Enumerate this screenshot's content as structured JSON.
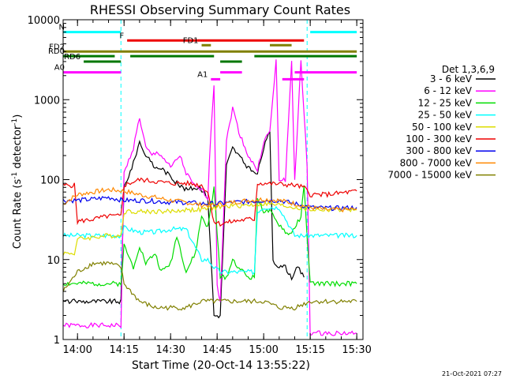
{
  "chart_data": {
    "type": "line",
    "title": "RHESSI Observing Summary Count Rates",
    "xlabel": "Start Time (20-Oct-14 13:55:22)",
    "ylabel": "Count Rate (s⁻¹ detector⁻¹)",
    "ylabel_main": "Count Rate (s",
    "ylabel_sup1": "-1",
    "ylabel_mid": " detector",
    "ylabel_sup2": "-1",
    "ylabel_end": ")",
    "y_scale": "log",
    "ylim": [
      1,
      10000
    ],
    "xlim": [
      "13:55:22",
      "15:32:00"
    ],
    "x_ticks": [
      "14:00",
      "14:15",
      "14:30",
      "14:45",
      "15:00",
      "15:15",
      "15:30"
    ],
    "y_ticks": [
      "1",
      "10",
      "100",
      "1000",
      "10000"
    ],
    "legend_title": "Det 1,3,6,9",
    "legend_position": "right",
    "footer_date": "21-Oct-2021 07:27",
    "series": [
      {
        "name": "3 - 6 keV",
        "color": "#000000",
        "points": [
          [
            "13:55:22",
            3
          ],
          [
            "14:14",
            3
          ],
          [
            "14:15",
            80
          ],
          [
            "14:18",
            160
          ],
          [
            "14:20",
            300
          ],
          [
            "14:22",
            200
          ],
          [
            "14:25",
            140
          ],
          [
            "14:27",
            140
          ],
          [
            "14:30",
            110
          ],
          [
            "14:32",
            90
          ],
          [
            "14:35",
            75
          ],
          [
            "14:38",
            80
          ],
          [
            "14:40",
            75
          ],
          [
            "14:42",
            60
          ],
          [
            "14:44",
            2
          ],
          [
            "14:46",
            2
          ],
          [
            "14:48",
            150
          ],
          [
            "14:50",
            250
          ],
          [
            "14:52",
            200
          ],
          [
            "14:55",
            140
          ],
          [
            "14:57",
            120
          ],
          [
            "14:58",
            120
          ],
          [
            "15:00",
            250
          ],
          [
            "15:02",
            400
          ],
          [
            "15:03",
            10
          ],
          [
            "15:05",
            8
          ],
          [
            "15:07",
            8
          ],
          [
            "15:09",
            6
          ],
          [
            "15:11",
            8
          ],
          [
            "15:13",
            6
          ]
        ]
      },
      {
        "name": "6 - 12 keV",
        "color": "#ff00ff",
        "points": [
          [
            "13:55:22",
            1.5
          ],
          [
            "14:14",
            1.5
          ],
          [
            "14:15",
            120
          ],
          [
            "14:18",
            250
          ],
          [
            "14:20",
            600
          ],
          [
            "14:22",
            250
          ],
          [
            "14:24",
            200
          ],
          [
            "14:26",
            220
          ],
          [
            "14:28",
            180
          ],
          [
            "14:30",
            140
          ],
          [
            "14:33",
            200
          ],
          [
            "14:35",
            120
          ],
          [
            "14:38",
            80
          ],
          [
            "14:40",
            75
          ],
          [
            "14:42",
            60
          ],
          [
            "14:43",
            400
          ],
          [
            "14:44",
            1600
          ],
          [
            "14:45",
            5
          ],
          [
            "14:46",
            3
          ],
          [
            "14:48",
            300
          ],
          [
            "14:50",
            800
          ],
          [
            "14:52",
            400
          ],
          [
            "14:55",
            200
          ],
          [
            "14:57",
            150
          ],
          [
            "14:58",
            130
          ],
          [
            "15:00",
            300
          ],
          [
            "15:02",
            400
          ],
          [
            "15:04",
            3000
          ],
          [
            "15:05",
            100
          ],
          [
            "15:07",
            100
          ],
          [
            "15:09",
            3000
          ],
          [
            "15:10",
            100
          ],
          [
            "15:12",
            3000
          ],
          [
            "15:14",
            150
          ],
          [
            "15:15",
            1.2
          ],
          [
            "15:30",
            1.2
          ]
        ]
      },
      {
        "name": "12 - 25 keV",
        "color": "#00dd00",
        "points": [
          [
            "13:55:22",
            5
          ],
          [
            "14:14",
            5
          ],
          [
            "14:15",
            15
          ],
          [
            "14:18",
            8
          ],
          [
            "14:20",
            15
          ],
          [
            "14:22",
            9
          ],
          [
            "14:25",
            12
          ],
          [
            "14:27",
            7
          ],
          [
            "14:30",
            9
          ],
          [
            "14:32",
            20
          ],
          [
            "14:35",
            7
          ],
          [
            "14:38",
            12
          ],
          [
            "14:40",
            35
          ],
          [
            "14:42",
            25
          ],
          [
            "14:44",
            80
          ],
          [
            "14:46",
            6
          ],
          [
            "14:48",
            6
          ],
          [
            "14:50",
            10
          ],
          [
            "14:52",
            8
          ],
          [
            "14:55",
            6
          ],
          [
            "14:57",
            6
          ],
          [
            "14:58",
            60
          ],
          [
            "15:00",
            40
          ],
          [
            "15:02",
            40
          ],
          [
            "15:04",
            30
          ],
          [
            "15:06",
            25
          ],
          [
            "15:08",
            20
          ],
          [
            "15:10",
            25
          ],
          [
            "15:12",
            35
          ],
          [
            "15:13",
            80
          ],
          [
            "15:15",
            5
          ],
          [
            "15:30",
            5
          ]
        ]
      },
      {
        "name": "25 - 50 keV",
        "color": "#00ffff",
        "points": [
          [
            "13:55:22",
            20
          ],
          [
            "14:14",
            20
          ],
          [
            "14:15",
            25
          ],
          [
            "14:20",
            22
          ],
          [
            "14:25",
            22
          ],
          [
            "14:30",
            24
          ],
          [
            "14:35",
            24
          ],
          [
            "14:40",
            10
          ],
          [
            "14:42",
            10
          ],
          [
            "14:44",
            8
          ],
          [
            "14:46",
            7
          ],
          [
            "14:48",
            7
          ],
          [
            "14:50",
            7
          ],
          [
            "14:55",
            7
          ],
          [
            "14:57",
            7
          ],
          [
            "14:58",
            40
          ],
          [
            "15:00",
            45
          ],
          [
            "15:05",
            45
          ],
          [
            "15:10",
            20
          ],
          [
            "15:13",
            20
          ],
          [
            "15:15",
            20
          ],
          [
            "15:30",
            20
          ]
        ]
      },
      {
        "name": "50 - 100 keV",
        "color": "#dddd00",
        "points": [
          [
            "13:55:22",
            12
          ],
          [
            "13:59",
            12
          ],
          [
            "14:00",
            18
          ],
          [
            "14:05",
            19
          ],
          [
            "14:10",
            20
          ],
          [
            "14:14",
            20
          ],
          [
            "14:15",
            40
          ],
          [
            "14:30",
            40
          ],
          [
            "14:35",
            42
          ],
          [
            "14:40",
            42
          ],
          [
            "14:44",
            45
          ],
          [
            "14:50",
            47
          ],
          [
            "14:55",
            48
          ],
          [
            "15:00",
            50
          ],
          [
            "15:05",
            48
          ],
          [
            "15:10",
            45
          ],
          [
            "15:15",
            42
          ],
          [
            "15:30",
            42
          ]
        ]
      },
      {
        "name": "100 - 300 keV",
        "color": "#ee0000",
        "points": [
          [
            "13:55:22",
            85
          ],
          [
            "13:59",
            85
          ],
          [
            "14:00",
            30
          ],
          [
            "14:05",
            32
          ],
          [
            "14:10",
            35
          ],
          [
            "14:14",
            35
          ],
          [
            "14:15",
            85
          ],
          [
            "14:20",
            100
          ],
          [
            "14:25",
            95
          ],
          [
            "14:30",
            90
          ],
          [
            "14:35",
            90
          ],
          [
            "14:40",
            85
          ],
          [
            "14:42",
            70
          ],
          [
            "14:44",
            30
          ],
          [
            "14:46",
            28
          ],
          [
            "14:50",
            30
          ],
          [
            "14:55",
            32
          ],
          [
            "14:57",
            32
          ],
          [
            "14:58",
            90
          ],
          [
            "15:00",
            90
          ],
          [
            "15:05",
            88
          ],
          [
            "15:10",
            85
          ],
          [
            "15:13",
            80
          ],
          [
            "15:15",
            65
          ],
          [
            "15:20",
            65
          ],
          [
            "15:25",
            68
          ],
          [
            "15:30",
            72
          ]
        ]
      },
      {
        "name": "300 - 800 keV",
        "color": "#0000ee",
        "points": [
          [
            "13:55:22",
            55
          ],
          [
            "14:00",
            55
          ],
          [
            "14:05",
            57
          ],
          [
            "14:10",
            60
          ],
          [
            "14:15",
            55
          ],
          [
            "14:20",
            55
          ],
          [
            "14:25",
            54
          ],
          [
            "14:30",
            52
          ],
          [
            "14:35",
            52
          ],
          [
            "14:40",
            50
          ],
          [
            "14:45",
            50
          ],
          [
            "14:50",
            52
          ],
          [
            "14:55",
            53
          ],
          [
            "15:00",
            55
          ],
          [
            "15:05",
            55
          ],
          [
            "15:10",
            50
          ],
          [
            "15:15",
            45
          ],
          [
            "15:20",
            44
          ],
          [
            "15:25",
            44
          ],
          [
            "15:30",
            45
          ]
        ]
      },
      {
        "name": "800 - 7000 keV",
        "color": "#ff8800",
        "points": [
          [
            "13:55:22",
            50
          ],
          [
            "14:00",
            65
          ],
          [
            "14:05",
            70
          ],
          [
            "14:10",
            75
          ],
          [
            "14:15",
            72
          ],
          [
            "14:20",
            65
          ],
          [
            "14:25",
            60
          ],
          [
            "14:30",
            55
          ],
          [
            "14:35",
            52
          ],
          [
            "14:40",
            48
          ],
          [
            "14:45",
            48
          ],
          [
            "14:50",
            52
          ],
          [
            "14:55",
            55
          ],
          [
            "15:00",
            57
          ],
          [
            "15:05",
            55
          ],
          [
            "15:10",
            50
          ],
          [
            "15:15",
            45
          ],
          [
            "15:20",
            42
          ],
          [
            "15:25",
            42
          ],
          [
            "15:30",
            43
          ]
        ]
      },
      {
        "name": "7000 - 15000 keV",
        "color": "#808000",
        "points": [
          [
            "13:55:22",
            4
          ],
          [
            "14:00",
            7
          ],
          [
            "14:05",
            9
          ],
          [
            "14:10",
            9
          ],
          [
            "14:14",
            8
          ],
          [
            "14:15",
            5
          ],
          [
            "14:20",
            3
          ],
          [
            "14:25",
            2.5
          ],
          [
            "14:30",
            2.5
          ],
          [
            "14:35",
            2.5
          ],
          [
            "14:40",
            3
          ],
          [
            "14:45",
            3
          ],
          [
            "14:50",
            3
          ],
          [
            "14:55",
            3
          ],
          [
            "15:00",
            3
          ],
          [
            "15:05",
            2.5
          ],
          [
            "15:10",
            2.5
          ],
          [
            "15:15",
            3
          ],
          [
            "15:20",
            3
          ],
          [
            "15:25",
            3
          ],
          [
            "15:30",
            3
          ]
        ]
      }
    ],
    "flag_bars": [
      {
        "label": "N",
        "color": "#00ffff",
        "level": 7000,
        "segments": [
          [
            "13:55:22",
            "14:14"
          ],
          [
            "15:15",
            "15:30"
          ]
        ]
      },
      {
        "label": "F",
        "color": "#ee0000",
        "level": 5500,
        "segments": [
          [
            "14:16",
            "15:13"
          ]
        ]
      },
      {
        "label": "FD1",
        "color": "#808000",
        "level": 4800,
        "segments": [
          [
            "14:40",
            "14:43"
          ],
          [
            "15:02",
            "15:09"
          ]
        ]
      },
      {
        "label": "FD2",
        "color": "#808000",
        "level": 4000,
        "segments": [
          [
            "13:55:22",
            "15:30"
          ]
        ]
      },
      {
        "label": "RD0",
        "color": "#007700",
        "level": 3500,
        "segments": [
          [
            "13:55:22",
            "14:12"
          ],
          [
            "14:17",
            "14:44"
          ],
          [
            "14:57",
            "15:30"
          ]
        ]
      },
      {
        "label": "RD6",
        "color": "#007700",
        "level": 3000,
        "segments": [
          [
            "14:02",
            "14:14"
          ],
          [
            "14:46",
            "14:53"
          ]
        ]
      },
      {
        "label": "A0",
        "color": "#ff00ff",
        "level": 2200,
        "segments": [
          [
            "13:55:22",
            "14:14"
          ],
          [
            "14:46",
            "14:53"
          ],
          [
            "15:10",
            "15:30"
          ]
        ]
      },
      {
        "label": "A1",
        "color": "#ff00ff",
        "level": 1800,
        "segments": [
          [
            "14:43",
            "14:46"
          ],
          [
            "15:06",
            "15:13"
          ]
        ]
      }
    ],
    "eclipse_markers": [
      "14:14",
      "15:14"
    ]
  }
}
